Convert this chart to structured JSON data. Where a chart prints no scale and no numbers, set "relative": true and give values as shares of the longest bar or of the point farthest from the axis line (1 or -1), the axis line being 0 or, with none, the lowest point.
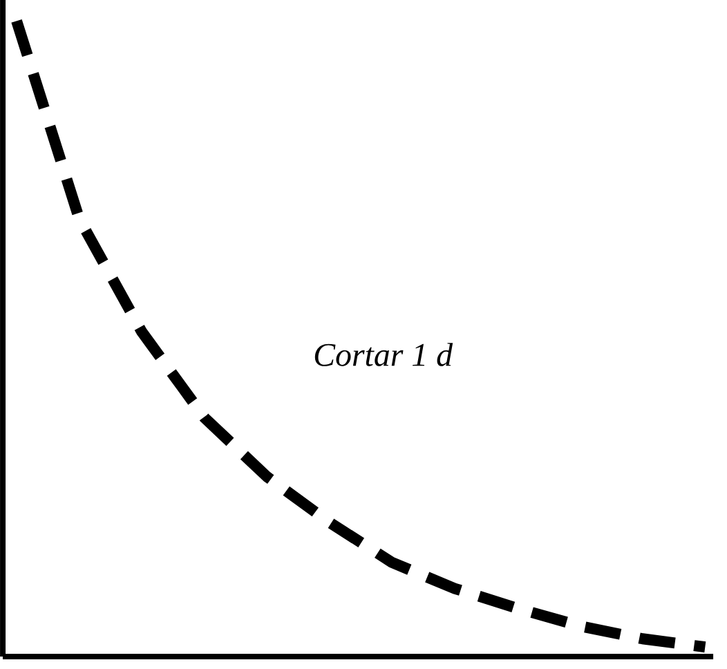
{
  "chart_data": {
    "type": "line",
    "relative": true,
    "categories": [
      null,
      null,
      null,
      null,
      null,
      null,
      null,
      null,
      null,
      null,
      null,
      null
    ],
    "series": [
      {
        "color": "#000000",
        "values": [
          1,
          0.689,
          0.511,
          0.376,
          0.283,
          0.211,
          0.148,
          0.107,
          0.076,
          0.048,
          0.028,
          0.015
        ]
      }
    ],
    "line_style": "dashed",
    "marker": "none",
    "annotations": [
      "Cortar 1 d"
    ]
  }
}
